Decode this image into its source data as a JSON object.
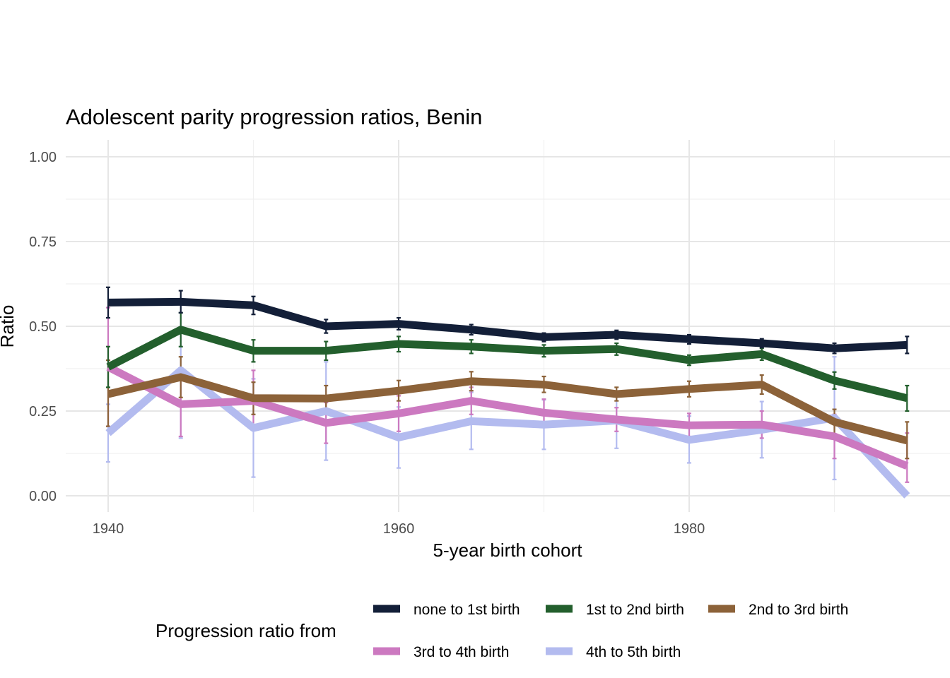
{
  "chart_data": {
    "type": "line",
    "title": "Adolescent parity progression ratios,  Benin",
    "xlabel": "5-year birth cohort",
    "ylabel": "Ratio",
    "xlim": [
      1937,
      1997
    ],
    "ylim": [
      0,
      1
    ],
    "x_ticks": [
      1940,
      1960,
      1980
    ],
    "y_ticks": [
      0,
      0.25,
      0.5,
      0.75,
      1
    ],
    "y_tick_labels": [
      "0.00",
      "0.25",
      "0.50",
      "0.75",
      "1.00"
    ],
    "x": [
      1940,
      1945,
      1950,
      1955,
      1960,
      1965,
      1970,
      1975,
      1980,
      1985,
      1990,
      1995
    ],
    "legend_title": "Progression ratio from",
    "legend_position": "bottom",
    "series": [
      {
        "name": "none to 1st birth",
        "color": "#131f38",
        "values": [
          0.57,
          0.572,
          0.562,
          0.5,
          0.507,
          0.49,
          0.468,
          0.475,
          0.462,
          0.45,
          0.435,
          0.445
        ],
        "lower": [
          0.525,
          0.54,
          0.535,
          0.48,
          0.49,
          0.475,
          0.455,
          0.462,
          0.448,
          0.437,
          0.42,
          0.42
        ],
        "upper": [
          0.615,
          0.605,
          0.588,
          0.52,
          0.525,
          0.505,
          0.48,
          0.488,
          0.475,
          0.463,
          0.45,
          0.47
        ]
      },
      {
        "name": "1st to 2nd birth",
        "color": "#235f2d",
        "values": [
          0.38,
          0.49,
          0.428,
          0.428,
          0.448,
          0.44,
          0.428,
          0.433,
          0.4,
          0.418,
          0.34,
          0.288
        ],
        "lower": [
          0.32,
          0.44,
          0.395,
          0.4,
          0.425,
          0.42,
          0.41,
          0.415,
          0.385,
          0.4,
          0.315,
          0.25
        ],
        "upper": [
          0.44,
          0.54,
          0.46,
          0.455,
          0.47,
          0.46,
          0.445,
          0.45,
          0.415,
          0.435,
          0.365,
          0.325
        ]
      },
      {
        "name": "2nd to 3rd birth",
        "color": "#8c6239",
        "values": [
          0.3,
          0.35,
          0.288,
          0.287,
          0.31,
          0.338,
          0.328,
          0.3,
          0.315,
          0.328,
          0.218,
          0.163
        ],
        "lower": [
          0.205,
          0.29,
          0.24,
          0.25,
          0.28,
          0.31,
          0.305,
          0.28,
          0.292,
          0.3,
          0.18,
          0.11
        ],
        "upper": [
          0.4,
          0.41,
          0.335,
          0.325,
          0.34,
          0.366,
          0.352,
          0.32,
          0.338,
          0.356,
          0.255,
          0.218
        ]
      },
      {
        "name": "3rd to 4th birth",
        "color": "#cc79c0",
        "values": [
          0.38,
          0.27,
          0.28,
          0.215,
          0.243,
          0.28,
          0.245,
          0.225,
          0.208,
          0.21,
          0.175,
          0.088
        ],
        "lower": [
          0.205,
          0.175,
          0.195,
          0.155,
          0.19,
          0.24,
          0.205,
          0.19,
          0.175,
          0.17,
          0.11,
          0.04
        ],
        "upper": [
          0.555,
          0.365,
          0.37,
          0.275,
          0.295,
          0.32,
          0.285,
          0.26,
          0.243,
          0.25,
          0.24,
          0.185
        ]
      },
      {
        "name": "4th to 5th birth",
        "color": "#b3bbef",
        "values": [
          0.185,
          0.37,
          0.2,
          0.25,
          0.172,
          0.22,
          0.21,
          0.222,
          0.165,
          0.195,
          0.23,
          0.0
        ],
        "lower": [
          0.1,
          0.17,
          0.055,
          0.105,
          0.082,
          0.137,
          0.137,
          0.14,
          0.097,
          0.112,
          0.048,
          0.0
        ],
        "upper": [
          0.27,
          0.575,
          0.345,
          0.395,
          0.262,
          0.305,
          0.283,
          0.305,
          0.235,
          0.278,
          0.41,
          0.0
        ]
      }
    ]
  }
}
